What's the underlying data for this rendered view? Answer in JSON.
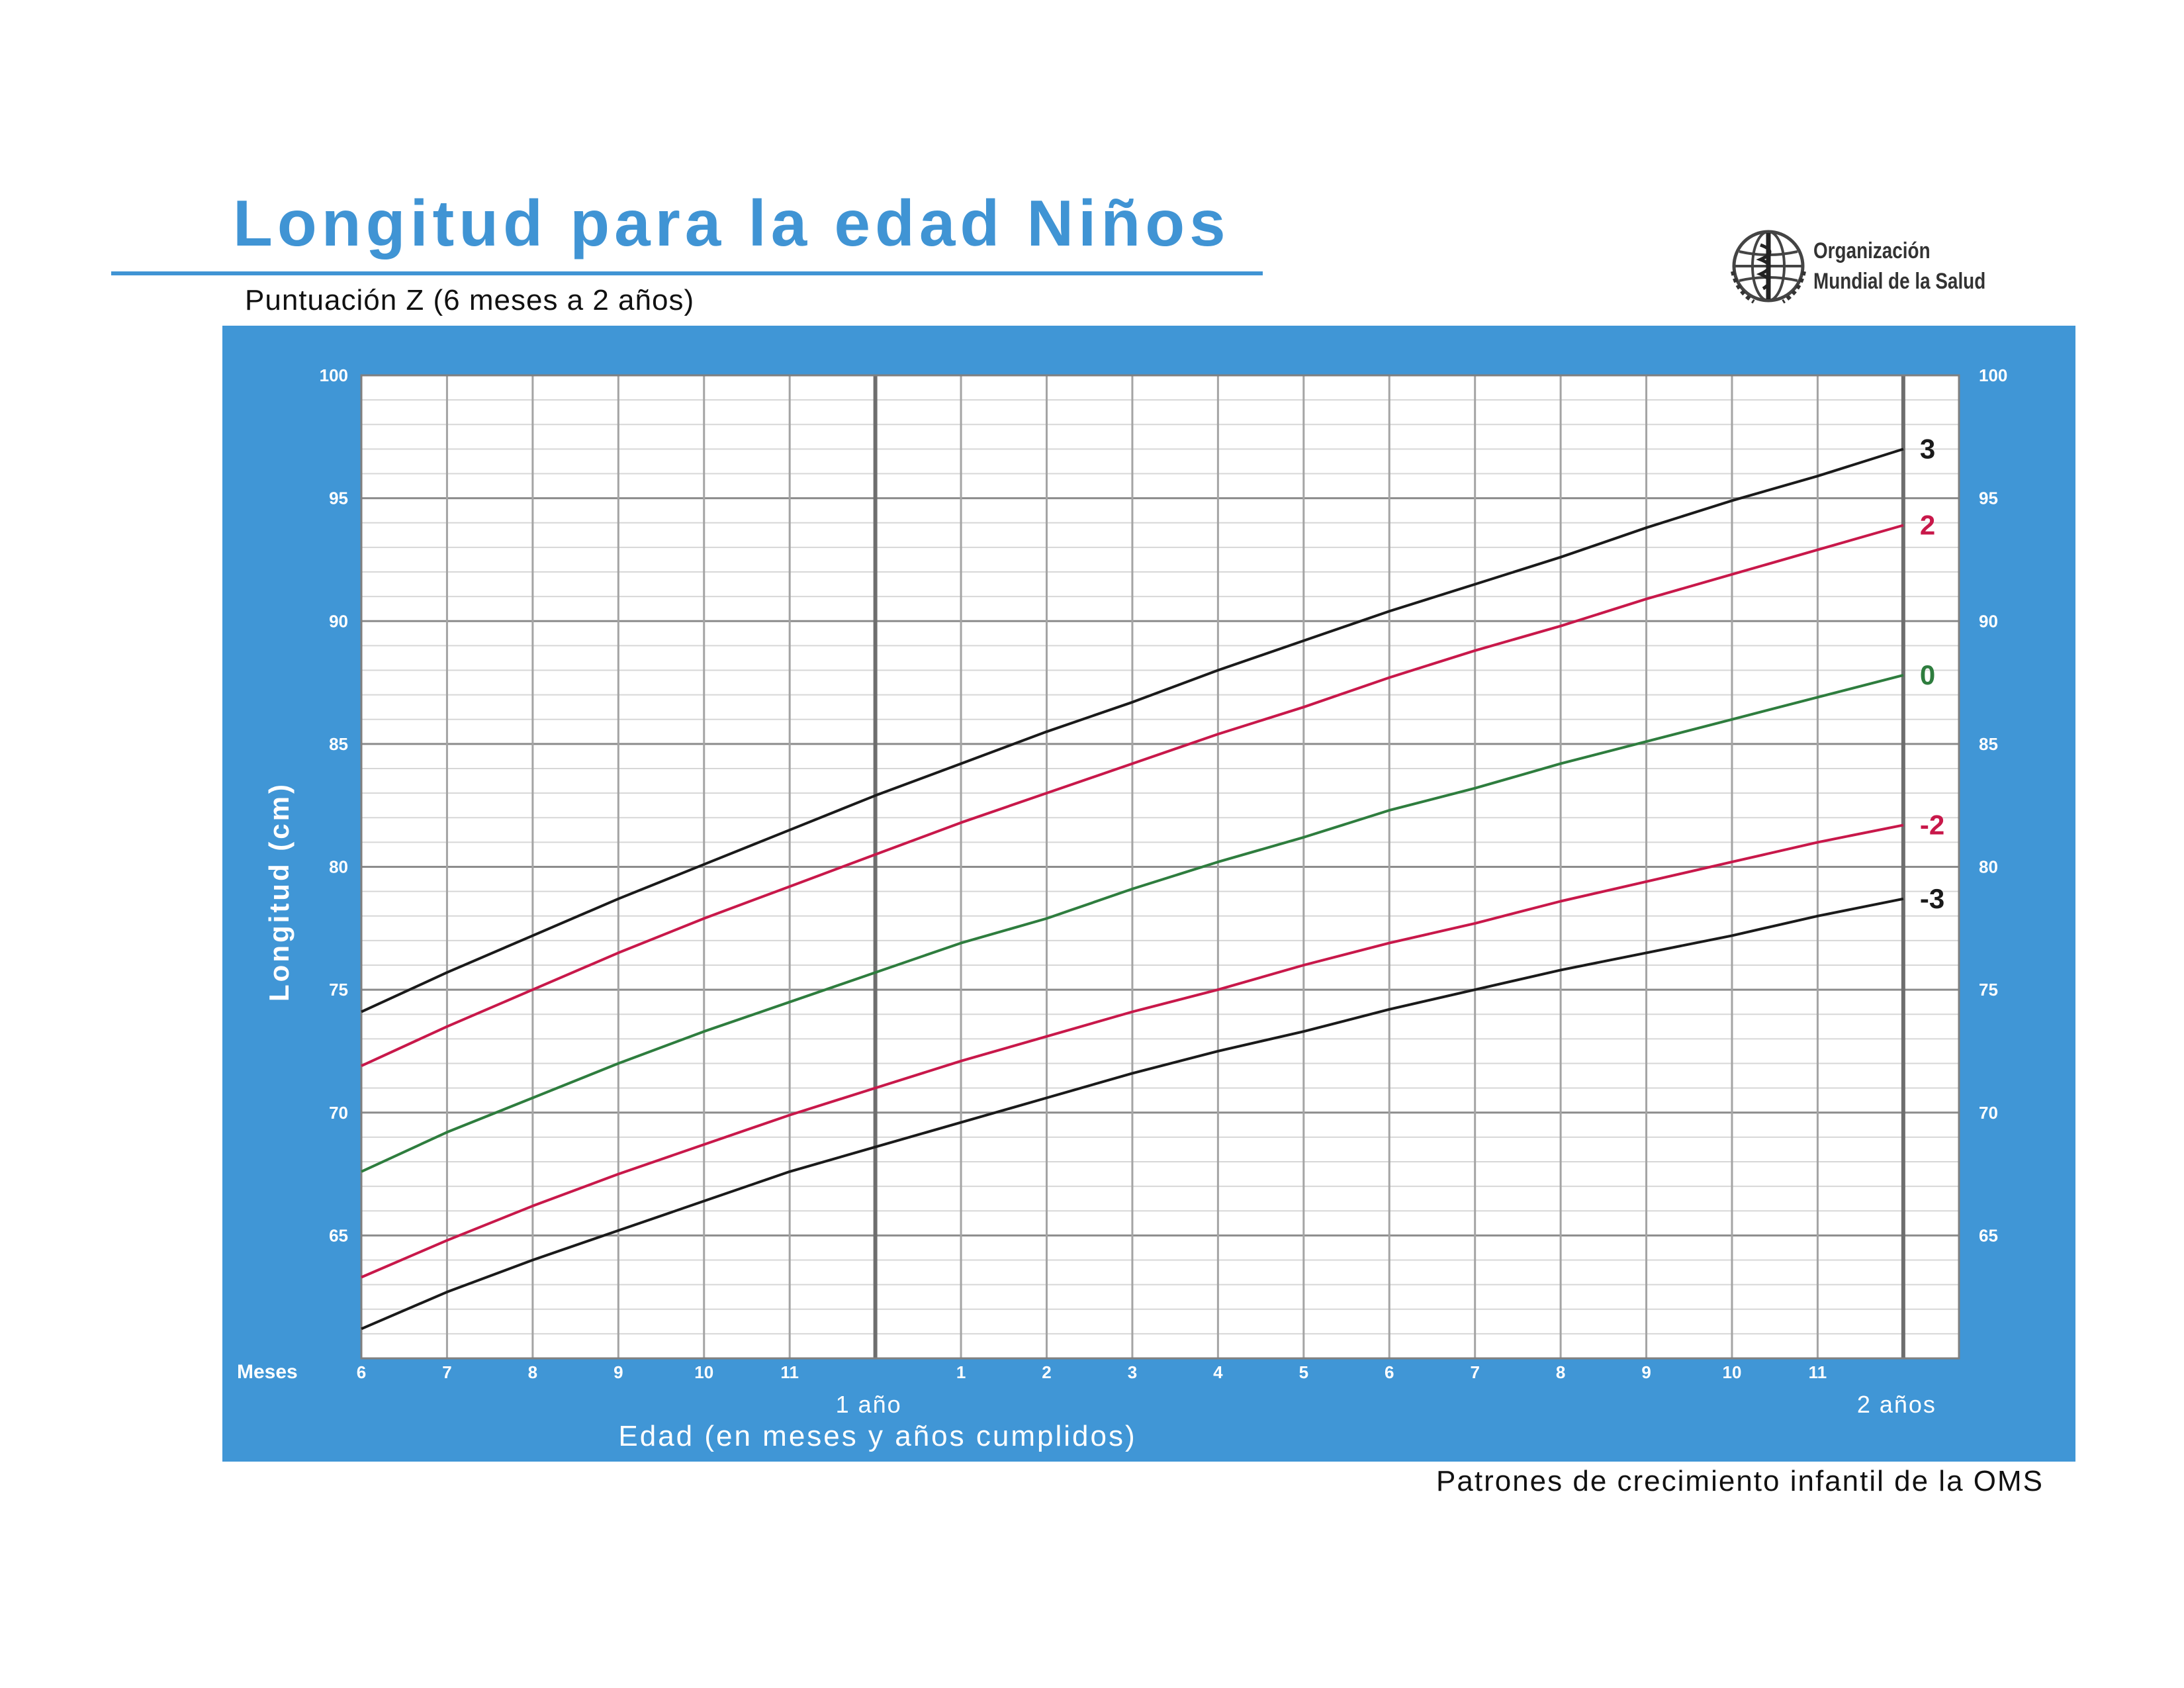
{
  "header": {
    "title": "Longitud para la edad Niños",
    "subtitle": "Puntuación Z (6 meses a 2 años)"
  },
  "logo": {
    "line1": "Organización",
    "line2": "Mundial de la Salud",
    "icon": "who-emblem-icon"
  },
  "footer": {
    "text": "Patrones de crecimiento infantil de la OMS"
  },
  "colors": {
    "panel_bg": "#4096d6",
    "title": "#4094d4",
    "line_black": "#1a1a1a",
    "line_red": "#c8184a",
    "line_green": "#2e7d3e"
  },
  "chart_data": {
    "type": "line",
    "ylabel": "Longitud (cm)",
    "xlabel": "Edad (en meses y años cumplidos)",
    "x_axis_prefix": "Meses",
    "x": [
      6,
      7,
      8,
      9,
      10,
      11,
      12,
      13,
      14,
      15,
      16,
      17,
      18,
      19,
      20,
      21,
      22,
      23,
      24
    ],
    "x_tick_labels": [
      "6",
      "7",
      "8",
      "9",
      "10",
      "11",
      "",
      "1",
      "2",
      "3",
      "4",
      "5",
      "6",
      "7",
      "8",
      "9",
      "10",
      "11",
      ""
    ],
    "year_labels": [
      {
        "at": 12,
        "text": "1 año"
      },
      {
        "at": 24,
        "text": "2 años"
      }
    ],
    "xlim": [
      6,
      24.65
    ],
    "ylim": [
      60,
      100
    ],
    "y_ticks": [
      65,
      70,
      75,
      80,
      85,
      90,
      95,
      100
    ],
    "grid": true,
    "series": [
      {
        "name": "3",
        "color": "#1a1a1a",
        "values": [
          74.1,
          75.7,
          77.2,
          78.7,
          80.1,
          81.5,
          82.9,
          84.2,
          85.5,
          86.7,
          88.0,
          89.2,
          90.4,
          91.5,
          92.6,
          93.8,
          94.9,
          95.9,
          97.0
        ]
      },
      {
        "name": "2",
        "color": "#c8184a",
        "values": [
          71.9,
          73.5,
          75.0,
          76.5,
          77.9,
          79.2,
          80.5,
          81.8,
          83.0,
          84.2,
          85.4,
          86.5,
          87.7,
          88.8,
          89.8,
          90.9,
          91.9,
          92.9,
          93.9
        ]
      },
      {
        "name": "0",
        "color": "#2e7d3e",
        "values": [
          67.6,
          69.2,
          70.6,
          72.0,
          73.3,
          74.5,
          75.7,
          76.9,
          77.9,
          79.1,
          80.2,
          81.2,
          82.3,
          83.2,
          84.2,
          85.1,
          86.0,
          86.9,
          87.8
        ]
      },
      {
        "name": "-2",
        "color": "#c8184a",
        "values": [
          63.3,
          64.8,
          66.2,
          67.5,
          68.7,
          69.9,
          71.0,
          72.1,
          73.1,
          74.1,
          75.0,
          76.0,
          76.9,
          77.7,
          78.6,
          79.4,
          80.2,
          81.0,
          81.7
        ]
      },
      {
        "name": "-3",
        "color": "#1a1a1a",
        "values": [
          61.2,
          62.7,
          64.0,
          65.2,
          66.4,
          67.6,
          68.6,
          69.6,
          70.6,
          71.6,
          72.5,
          73.3,
          74.2,
          75.0,
          75.8,
          76.5,
          77.2,
          78.0,
          78.7
        ]
      }
    ]
  }
}
